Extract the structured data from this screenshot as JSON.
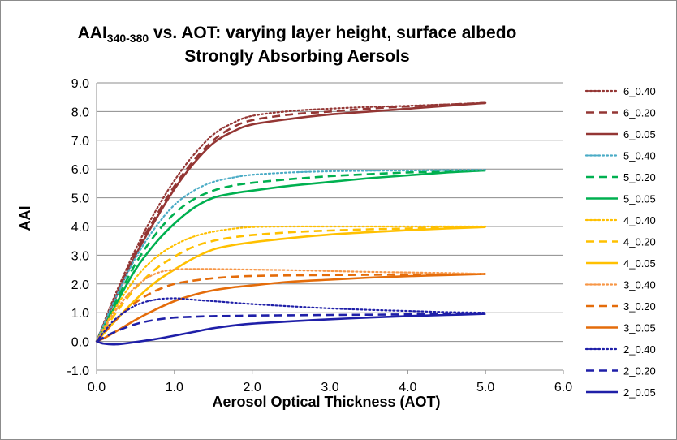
{
  "chart_data": {
    "type": "line",
    "title_main": "AAI",
    "title_sub": "340-380",
    "title_rest": " vs. AOT: varying layer height, surface albedo",
    "subtitle": "Strongly Absorbing Aersols",
    "xlabel": "Aerosol Optical Thickness (AOT)",
    "ylabel": "AAI",
    "xlim": [
      0,
      6
    ],
    "ylim": [
      -1,
      9
    ],
    "xticks": [
      "0.0",
      "1.0",
      "2.0",
      "3.0",
      "4.0",
      "5.0",
      "6.0"
    ],
    "yticks": [
      "-1.0",
      "0.0",
      "1.0",
      "2.0",
      "3.0",
      "4.0",
      "5.0",
      "6.0",
      "7.0",
      "8.0",
      "9.0"
    ],
    "grid": "horizontal",
    "legend_position": "right",
    "series": [
      {
        "name": "6_0.40",
        "color": "#943634",
        "style": "dotted",
        "x": [
          0,
          0.1,
          0.25,
          0.5,
          0.75,
          1,
          1.25,
          1.5,
          1.75,
          2,
          2.5,
          3,
          3.5,
          4,
          4.5,
          5
        ],
        "y": [
          0,
          0.7,
          1.7,
          3.2,
          4.5,
          5.6,
          6.5,
          7.2,
          7.6,
          7.85,
          8.02,
          8.1,
          8.16,
          8.2,
          8.25,
          8.3
        ]
      },
      {
        "name": "6_0.20",
        "color": "#943634",
        "style": "dashed",
        "x": [
          0,
          0.1,
          0.25,
          0.5,
          0.75,
          1,
          1.25,
          1.5,
          1.75,
          2,
          2.5,
          3,
          3.5,
          4,
          4.5,
          5
        ],
        "y": [
          0,
          0.65,
          1.6,
          3.1,
          4.3,
          5.4,
          6.3,
          7.0,
          7.45,
          7.7,
          7.9,
          8.0,
          8.1,
          8.18,
          8.24,
          8.3
        ]
      },
      {
        "name": "6_0.05",
        "color": "#943634",
        "style": "solid",
        "x": [
          0,
          0.1,
          0.25,
          0.5,
          0.75,
          1,
          1.25,
          1.5,
          1.75,
          2,
          2.5,
          3,
          3.5,
          4,
          4.5,
          5
        ],
        "y": [
          0,
          0.6,
          1.55,
          3.0,
          4.2,
          5.3,
          6.2,
          6.9,
          7.3,
          7.55,
          7.75,
          7.9,
          8.0,
          8.1,
          8.2,
          8.3
        ]
      },
      {
        "name": "5_0.40",
        "color": "#4bacc6",
        "style": "dotted",
        "x": [
          0,
          0.1,
          0.25,
          0.5,
          0.75,
          1,
          1.25,
          1.5,
          1.75,
          2,
          2.5,
          3,
          3.5,
          4,
          4.5,
          5
        ],
        "y": [
          0,
          0.65,
          1.55,
          2.9,
          3.95,
          4.75,
          5.25,
          5.55,
          5.7,
          5.8,
          5.88,
          5.92,
          5.94,
          5.95,
          5.96,
          5.97
        ]
      },
      {
        "name": "5_0.20",
        "color": "#00b050",
        "style": "dashed",
        "x": [
          0,
          0.1,
          0.25,
          0.5,
          0.75,
          1,
          1.25,
          1.5,
          1.75,
          2,
          2.5,
          3,
          3.5,
          4,
          4.5,
          5
        ],
        "y": [
          0,
          0.55,
          1.4,
          2.7,
          3.7,
          4.45,
          4.95,
          5.25,
          5.42,
          5.52,
          5.65,
          5.75,
          5.82,
          5.88,
          5.92,
          5.96
        ]
      },
      {
        "name": "5_0.05",
        "color": "#00b050",
        "style": "solid",
        "x": [
          0,
          0.1,
          0.25,
          0.5,
          0.75,
          1,
          1.25,
          1.5,
          1.75,
          2,
          2.5,
          3,
          3.5,
          4,
          4.5,
          5
        ],
        "y": [
          0,
          0.5,
          1.3,
          2.5,
          3.4,
          4.1,
          4.65,
          5.0,
          5.15,
          5.25,
          5.42,
          5.55,
          5.68,
          5.78,
          5.88,
          5.95
        ]
      },
      {
        "name": "4_0.40",
        "color": "#ffc000",
        "style": "dotted",
        "x": [
          0,
          0.1,
          0.25,
          0.5,
          0.75,
          1,
          1.25,
          1.5,
          1.75,
          2,
          2.5,
          3,
          3.5,
          4,
          4.5,
          5
        ],
        "y": [
          0,
          0.5,
          1.2,
          2.2,
          2.9,
          3.35,
          3.65,
          3.82,
          3.92,
          3.98,
          4.0,
          4.0,
          4.0,
          4.0,
          4.0,
          4.0
        ]
      },
      {
        "name": "4_0.20",
        "color": "#ffc000",
        "style": "dashed",
        "x": [
          0,
          0.1,
          0.25,
          0.5,
          0.75,
          1,
          1.25,
          1.5,
          1.75,
          2,
          2.5,
          3,
          3.5,
          4,
          4.5,
          5
        ],
        "y": [
          0,
          0.4,
          1.0,
          1.85,
          2.5,
          2.95,
          3.3,
          3.5,
          3.62,
          3.7,
          3.8,
          3.86,
          3.9,
          3.93,
          3.96,
          3.98
        ]
      },
      {
        "name": "4_0.05",
        "color": "#ffc000",
        "style": "solid",
        "x": [
          0,
          0.1,
          0.25,
          0.5,
          0.75,
          1,
          1.25,
          1.5,
          1.75,
          2,
          2.5,
          3,
          3.5,
          4,
          4.5,
          5
        ],
        "y": [
          0,
          0.3,
          0.75,
          1.45,
          2.05,
          2.5,
          2.9,
          3.2,
          3.35,
          3.45,
          3.6,
          3.72,
          3.8,
          3.87,
          3.93,
          3.98
        ]
      },
      {
        "name": "3_0.40",
        "color": "#f79646",
        "style": "dotted",
        "x": [
          0,
          0.1,
          0.25,
          0.5,
          0.75,
          1,
          1.25,
          1.5,
          1.75,
          2,
          2.5,
          3,
          3.5,
          4,
          4.5,
          5
        ],
        "y": [
          0,
          0.45,
          1.1,
          1.9,
          2.35,
          2.5,
          2.52,
          2.52,
          2.51,
          2.5,
          2.48,
          2.45,
          2.42,
          2.4,
          2.38,
          2.35
        ]
      },
      {
        "name": "3_0.20",
        "color": "#e46c0a",
        "style": "dashed",
        "x": [
          0,
          0.1,
          0.25,
          0.5,
          0.75,
          1,
          1.25,
          1.5,
          1.75,
          2,
          2.5,
          3,
          3.5,
          4,
          4.5,
          5
        ],
        "y": [
          0,
          0.3,
          0.75,
          1.35,
          1.75,
          2.0,
          2.12,
          2.2,
          2.25,
          2.28,
          2.3,
          2.31,
          2.32,
          2.33,
          2.34,
          2.35
        ]
      },
      {
        "name": "3_0.05",
        "color": "#e46c0a",
        "style": "solid",
        "x": [
          0,
          0.1,
          0.25,
          0.5,
          0.75,
          1,
          1.25,
          1.5,
          1.75,
          2,
          2.5,
          3,
          3.5,
          4,
          4.5,
          5
        ],
        "y": [
          0,
          0.12,
          0.35,
          0.75,
          1.1,
          1.4,
          1.62,
          1.78,
          1.88,
          1.95,
          2.08,
          2.15,
          2.22,
          2.27,
          2.31,
          2.35
        ]
      },
      {
        "name": "2_0.40",
        "color": "#1f1fa8",
        "style": "dotted",
        "x": [
          0,
          0.1,
          0.25,
          0.5,
          0.75,
          1,
          1.25,
          1.5,
          1.75,
          2,
          2.5,
          3,
          3.5,
          4,
          4.5,
          5
        ],
        "y": [
          0,
          0.35,
          0.8,
          1.25,
          1.45,
          1.5,
          1.45,
          1.4,
          1.35,
          1.3,
          1.22,
          1.15,
          1.1,
          1.06,
          1.02,
          1.0
        ]
      },
      {
        "name": "2_0.20",
        "color": "#1f1fa8",
        "style": "dashed",
        "x": [
          0,
          0.1,
          0.25,
          0.5,
          0.75,
          1,
          1.25,
          1.5,
          1.75,
          2,
          2.5,
          3,
          3.5,
          4,
          4.5,
          5
        ],
        "y": [
          0,
          0.15,
          0.35,
          0.6,
          0.75,
          0.83,
          0.86,
          0.88,
          0.89,
          0.9,
          0.91,
          0.92,
          0.93,
          0.94,
          0.95,
          0.96
        ]
      },
      {
        "name": "2_0.05",
        "color": "#1f1fa8",
        "style": "solid",
        "x": [
          0,
          0.1,
          0.25,
          0.5,
          0.75,
          1,
          1.25,
          1.5,
          1.75,
          2,
          2.5,
          3,
          3.5,
          4,
          4.5,
          5
        ],
        "y": [
          0,
          -0.08,
          -0.1,
          -0.02,
          0.08,
          0.2,
          0.33,
          0.46,
          0.55,
          0.62,
          0.7,
          0.77,
          0.83,
          0.88,
          0.92,
          0.96
        ]
      }
    ]
  }
}
